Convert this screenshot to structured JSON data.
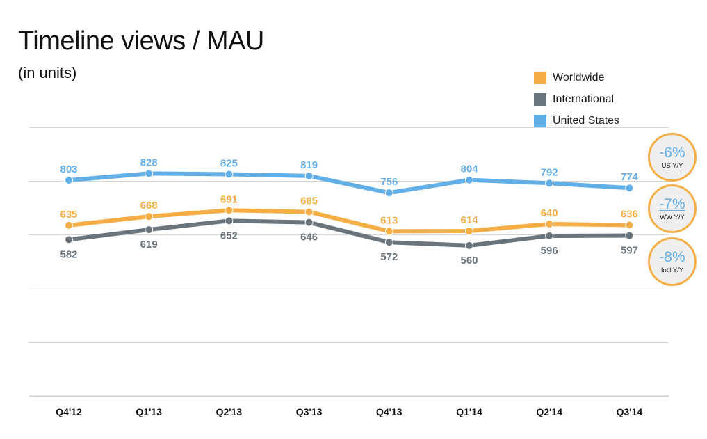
{
  "chart_data": {
    "type": "line",
    "title": "Timeline views / MAU",
    "subtitle": "(in units)",
    "xlabel": "",
    "ylabel": "",
    "categories": [
      "Q4'12",
      "Q1'13",
      "Q2'13",
      "Q3'13",
      "Q4'13",
      "Q1'14",
      "Q2'14",
      "Q3'14"
    ],
    "ylim": [
      0,
      1000
    ],
    "grid": true,
    "y_tick_step": 200,
    "y_ticks_labeled": false,
    "legend_position": "top-right",
    "series": [
      {
        "name": "Worldwide",
        "color": "#f5ae45",
        "values": [
          635,
          668,
          691,
          685,
          613,
          614,
          640,
          636
        ],
        "label_position": "above"
      },
      {
        "name": "International",
        "color": "#69747d",
        "values": [
          582,
          619,
          652,
          646,
          572,
          560,
          596,
          597
        ],
        "label_position": "below"
      },
      {
        "name": "United States",
        "color": "#62aee6",
        "values": [
          803,
          828,
          825,
          819,
          756,
          804,
          792,
          774
        ],
        "label_position": "above"
      }
    ],
    "legend": [
      "Worldwide",
      "International",
      "United States"
    ],
    "annotations": [
      {
        "value": "-6%",
        "label": "US Y/Y",
        "series": "United States"
      },
      {
        "value": "-7%",
        "label": "WW Y/Y",
        "series": "Worldwide"
      },
      {
        "value": "-8%",
        "label": "Int'l Y/Y",
        "series": "International"
      }
    ]
  },
  "colors": {
    "worldwide": "#f5ae45",
    "international": "#69747d",
    "united_states": "#62aee6",
    "gridline": "#d0d0d0",
    "badge_border": "#f5ae45",
    "badge_fill": "#efefef"
  }
}
